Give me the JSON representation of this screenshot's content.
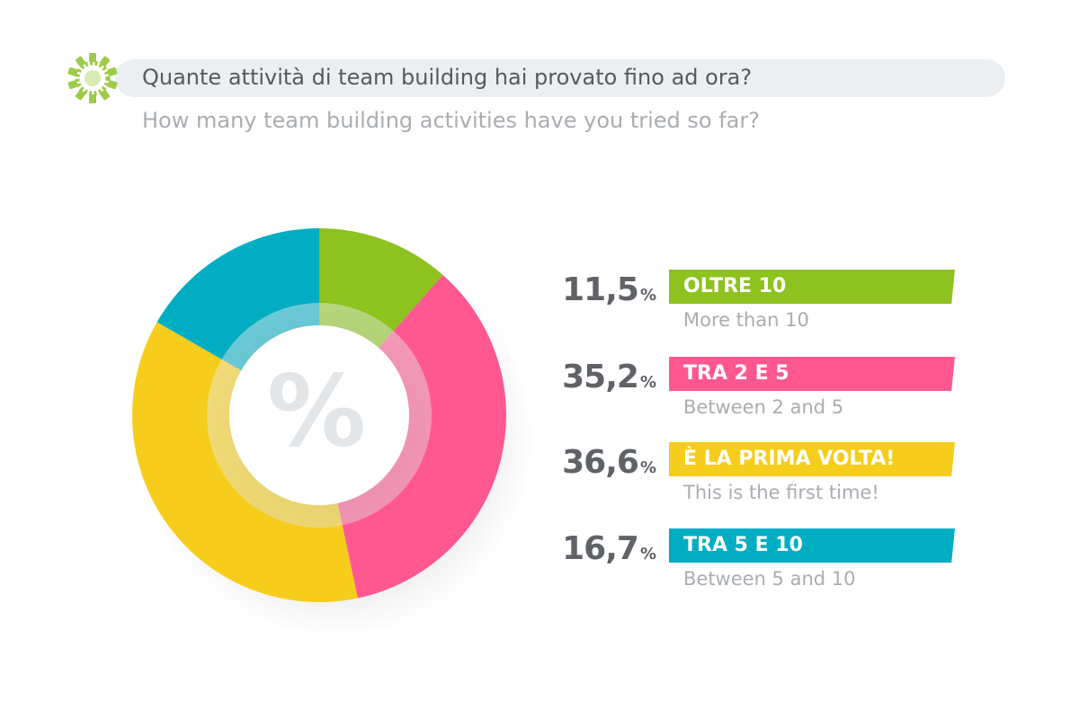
{
  "header": {
    "question_it": "Quante attività di team building hai provato fino ad ora?",
    "question_en": "How many team building activities have you tried so far?",
    "logo_icon": "gear-icon",
    "bar_color": "#eceff1",
    "logo_color": "#9dcb4a"
  },
  "center": {
    "symbol": "%",
    "icon": "percent-icon"
  },
  "chart_data": {
    "type": "pie",
    "donut": true,
    "unit": "%",
    "start_angle_deg": 0,
    "direction": "clockwise",
    "slices": [
      {
        "value": 11.5,
        "value_text": "11,5",
        "label": "OLTRE 10",
        "sublabel": "More than 10",
        "color": "#8dc21f"
      },
      {
        "value": 35.2,
        "value_text": "35,2",
        "label": "TRA 2 E 5",
        "sublabel": "Between 2 and 5",
        "color": "#ff5891"
      },
      {
        "value": 36.6,
        "value_text": "36,6",
        "label": "È LA PRIMA VOLTA!",
        "sublabel": "This is the first time!",
        "color": "#f6cd1c"
      },
      {
        "value": 16.7,
        "value_text": "16,7",
        "label": "TRA 5 E 10",
        "sublabel": "Between 5 and 10",
        "color": "#00adc3"
      }
    ],
    "legend": [
      {
        "value_text": "11,5",
        "unit": "%",
        "label": "OLTRE 10",
        "sublabel": "More than 10",
        "color": "#8dc21f"
      },
      {
        "value_text": "35,2",
        "unit": "%",
        "label": "TRA 2 E 5",
        "sublabel": "Between 2 and 5",
        "color": "#ff5891"
      },
      {
        "value_text": "36,6",
        "unit": "%",
        "label": "È LA PRIMA VOLTA!",
        "sublabel": "This is the first time!",
        "color": "#f6cd1c"
      },
      {
        "value_text": "16,7",
        "unit": "%",
        "label": "TRA 5 E 10",
        "sublabel": "Between 5 and 10",
        "color": "#00adc3"
      }
    ],
    "legend_placement": "right"
  }
}
